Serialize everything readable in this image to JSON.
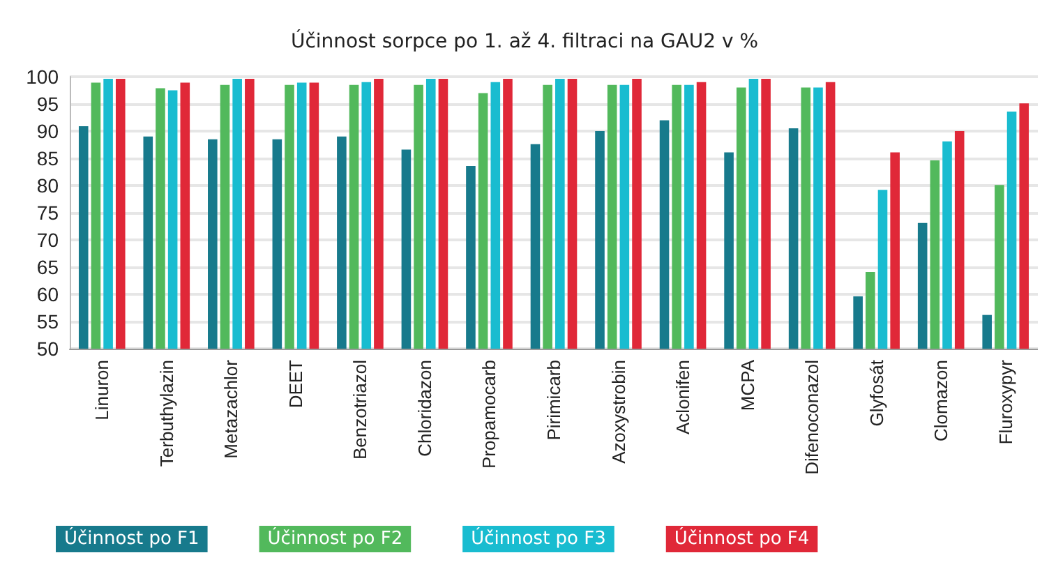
{
  "chart_data": {
    "type": "bar",
    "title": "Účinnost sorpce po 1. až 4. filtraci na GAU2 v %",
    "categories": [
      "Linuron",
      "Terbuthylazin",
      "Metazachlor",
      "DEET",
      "Benzotriazol",
      "Chloridazon",
      "Propamocarb",
      "Pirimicarb",
      "Azoxystrobin",
      "Aclonifen",
      "MCPA",
      "Difenoconazol",
      "Glyfosát",
      "Clomazon",
      "Fluroxypyr"
    ],
    "series": [
      {
        "name": "Účinnost po F1",
        "color": "#177a8c",
        "values": [
          90.9,
          89.0,
          88.5,
          88.5,
          89.0,
          86.6,
          83.6,
          87.6,
          90.0,
          92.0,
          86.1,
          90.5,
          59.6,
          73.1,
          56.2
        ]
      },
      {
        "name": "Účinnost po F2",
        "color": "#52b95c",
        "values": [
          98.9,
          97.9,
          98.5,
          98.5,
          98.5,
          98.5,
          97.0,
          98.5,
          98.5,
          98.5,
          98.0,
          98.0,
          64.1,
          84.6,
          80.1
        ]
      },
      {
        "name": "Účinnost po F3",
        "color": "#19bcd0",
        "values": [
          99.6,
          97.5,
          99.6,
          98.9,
          99.0,
          99.6,
          99.0,
          99.6,
          98.5,
          98.5,
          99.6,
          98.0,
          79.2,
          88.1,
          93.6
        ]
      },
      {
        "name": "Účinnost po F4",
        "color": "#e02838",
        "values": [
          99.6,
          98.9,
          99.6,
          98.9,
          99.6,
          99.6,
          99.6,
          99.6,
          99.6,
          99.0,
          99.6,
          99.0,
          86.1,
          90.0,
          95.1
        ]
      }
    ],
    "ylim": [
      50,
      100
    ],
    "yticks": [
      50,
      55,
      60,
      65,
      70,
      75,
      80,
      85,
      90,
      95,
      100
    ],
    "grid": "y",
    "legend": "bottom left"
  }
}
